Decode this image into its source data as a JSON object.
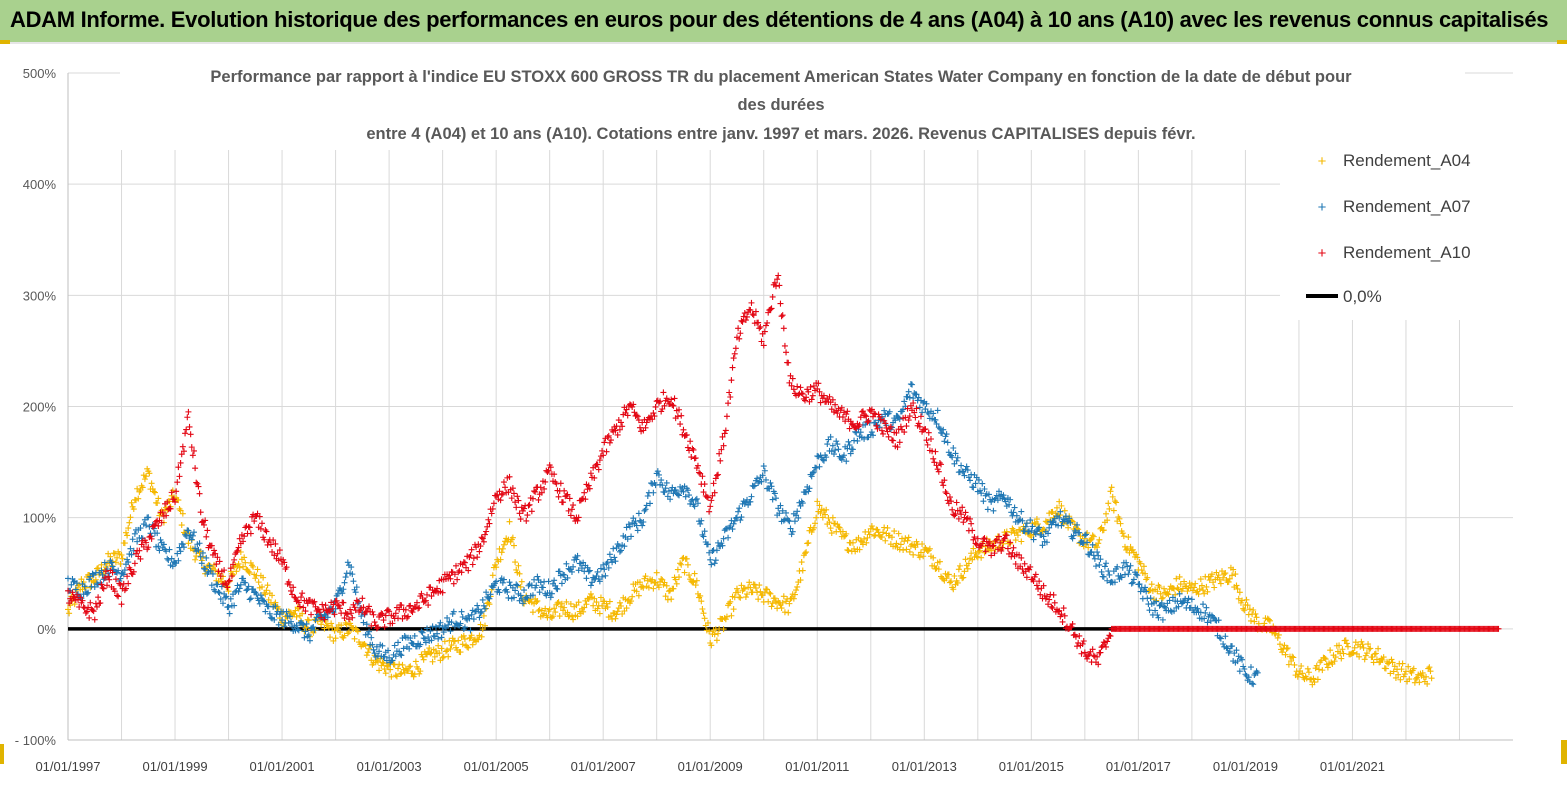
{
  "banner": {
    "title": "ADAM Informe. Evolution historique des performances en euros pour des détentions de 4 ans (A04) à 10 ans (A10) avec les revenus connus capitalisés"
  },
  "colors": {
    "banner_bg": "#a9d18e",
    "series_A04": "#f5b800",
    "series_A07": "#1f77b4",
    "series_A10": "#e30613",
    "zero_line": "#000000",
    "grid": "#d9d9d9"
  },
  "chart_data": {
    "type": "scatter",
    "title_lines": [
      "Performance par rapport à l'indice EU STOXX 600 GROSS TR  du placement American States Water Company en fonction de la date de début pour",
      "des durées",
      "entre 4 (A04) et 10 ans (A10). Cotations entre janv. 1997 et mars. 2026. Revenus CAPITALISES depuis févr."
    ],
    "ylim": [
      -100,
      500
    ],
    "y_ticks": [
      "500%",
      "400%",
      "300%",
      "200%",
      "100%",
      "0%",
      "- 100%"
    ],
    "y_tick_values": [
      500,
      400,
      300,
      200,
      100,
      0,
      -100
    ],
    "xlim": [
      "1997-01-01",
      "2023-12-31"
    ],
    "x_ticks": [
      "01/01/1997",
      "01/01/1999",
      "01/01/2001",
      "01/01/2003",
      "01/01/2005",
      "01/01/2007",
      "01/01/2009",
      "01/01/2011",
      "01/01/2013",
      "01/01/2015",
      "01/01/2017",
      "01/01/2019",
      "01/01/2021"
    ],
    "x_tick_years": [
      1997,
      1999,
      2001,
      2003,
      2005,
      2007,
      2009,
      2011,
      2013,
      2015,
      2017,
      2019,
      2021
    ],
    "x_minor_grid_years": [
      1998,
      2000,
      2002,
      2004,
      2006,
      2008,
      2010,
      2012,
      2014,
      2016,
      2018,
      2020,
      2022,
      2023
    ],
    "grid": true,
    "legend_position": "top-right",
    "marker": "+",
    "series": [
      {
        "name": "Rendement_A04",
        "color": "#f5b800",
        "points": [
          [
            1997.0,
            15
          ],
          [
            1997.25,
            40
          ],
          [
            1997.5,
            45
          ],
          [
            1997.75,
            60
          ],
          [
            1998.0,
            65
          ],
          [
            1998.25,
            120
          ],
          [
            1998.5,
            140
          ],
          [
            1998.75,
            100
          ],
          [
            1999.0,
            120
          ],
          [
            1999.25,
            80
          ],
          [
            1999.5,
            60
          ],
          [
            1999.75,
            50
          ],
          [
            2000.0,
            40
          ],
          [
            2000.25,
            65
          ],
          [
            2000.5,
            50
          ],
          [
            2000.75,
            30
          ],
          [
            2001.0,
            10
          ],
          [
            2001.25,
            15
          ],
          [
            2001.5,
            0
          ],
          [
            2001.75,
            5
          ],
          [
            2002.0,
            -5
          ],
          [
            2002.25,
            0
          ],
          [
            2002.5,
            -10
          ],
          [
            2002.75,
            -30
          ],
          [
            2003.0,
            -35
          ],
          [
            2003.25,
            -40
          ],
          [
            2003.5,
            -35
          ],
          [
            2003.75,
            -25
          ],
          [
            2004.0,
            -20
          ],
          [
            2004.25,
            -15
          ],
          [
            2004.5,
            -10
          ],
          [
            2004.75,
            0
          ],
          [
            2005.0,
            60
          ],
          [
            2005.25,
            90
          ],
          [
            2005.5,
            30
          ],
          [
            2005.75,
            20
          ],
          [
            2006.0,
            10
          ],
          [
            2006.25,
            20
          ],
          [
            2006.5,
            15
          ],
          [
            2006.75,
            25
          ],
          [
            2007.0,
            20
          ],
          [
            2007.25,
            15
          ],
          [
            2007.5,
            30
          ],
          [
            2007.75,
            40
          ],
          [
            2008.0,
            45
          ],
          [
            2008.25,
            30
          ],
          [
            2008.5,
            60
          ],
          [
            2008.75,
            40
          ],
          [
            2009.0,
            -10
          ],
          [
            2009.25,
            5
          ],
          [
            2009.5,
            30
          ],
          [
            2009.75,
            35
          ],
          [
            2010.0,
            30
          ],
          [
            2010.25,
            25
          ],
          [
            2010.5,
            20
          ],
          [
            2010.75,
            60
          ],
          [
            2011.0,
            110
          ],
          [
            2011.25,
            95
          ],
          [
            2011.5,
            80
          ],
          [
            2011.75,
            75
          ],
          [
            2012.0,
            90
          ],
          [
            2012.25,
            85
          ],
          [
            2012.5,
            80
          ],
          [
            2012.75,
            75
          ],
          [
            2013.0,
            70
          ],
          [
            2013.25,
            60
          ],
          [
            2013.5,
            40
          ],
          [
            2013.75,
            55
          ],
          [
            2014.0,
            70
          ],
          [
            2014.25,
            75
          ],
          [
            2014.5,
            80
          ],
          [
            2014.75,
            85
          ],
          [
            2015.0,
            90
          ],
          [
            2015.25,
            95
          ],
          [
            2015.5,
            110
          ],
          [
            2015.75,
            90
          ],
          [
            2016.0,
            80
          ],
          [
            2016.25,
            75
          ],
          [
            2016.5,
            120
          ],
          [
            2016.75,
            80
          ],
          [
            2017.0,
            60
          ],
          [
            2017.25,
            35
          ],
          [
            2017.5,
            30
          ],
          [
            2017.75,
            40
          ],
          [
            2018.0,
            35
          ],
          [
            2018.25,
            40
          ],
          [
            2018.5,
            45
          ],
          [
            2018.75,
            50
          ],
          [
            2019.0,
            20
          ],
          [
            2019.25,
            5
          ],
          [
            2019.5,
            0
          ],
          [
            2019.75,
            -20
          ],
          [
            2020.0,
            -40
          ],
          [
            2020.25,
            -45
          ],
          [
            2020.5,
            -30
          ],
          [
            2020.75,
            -20
          ],
          [
            2021.0,
            -15
          ],
          [
            2021.25,
            -20
          ],
          [
            2021.5,
            -25
          ],
          [
            2021.75,
            -35
          ],
          [
            2022.0,
            -40
          ],
          [
            2022.25,
            -45
          ],
          [
            2022.5,
            -40
          ]
        ]
      },
      {
        "name": "Rendement_A07",
        "color": "#1f77b4",
        "points": [
          [
            1997.0,
            40
          ],
          [
            1997.25,
            35
          ],
          [
            1997.5,
            45
          ],
          [
            1997.75,
            55
          ],
          [
            1998.0,
            50
          ],
          [
            1998.25,
            80
          ],
          [
            1998.5,
            95
          ],
          [
            1998.75,
            70
          ],
          [
            1999.0,
            60
          ],
          [
            1999.25,
            90
          ],
          [
            1999.5,
            65
          ],
          [
            1999.75,
            40
          ],
          [
            2000.0,
            20
          ],
          [
            2000.25,
            40
          ],
          [
            2000.5,
            30
          ],
          [
            2000.75,
            15
          ],
          [
            2001.0,
            10
          ],
          [
            2001.25,
            5
          ],
          [
            2001.5,
            -5
          ],
          [
            2001.75,
            10
          ],
          [
            2002.0,
            20
          ],
          [
            2002.25,
            60
          ],
          [
            2002.5,
            10
          ],
          [
            2002.75,
            -20
          ],
          [
            2003.0,
            -25
          ],
          [
            2003.25,
            -15
          ],
          [
            2003.5,
            -10
          ],
          [
            2003.75,
            -5
          ],
          [
            2004.0,
            0
          ],
          [
            2004.25,
            10
          ],
          [
            2004.5,
            5
          ],
          [
            2004.75,
            20
          ],
          [
            2005.0,
            40
          ],
          [
            2005.25,
            35
          ],
          [
            2005.5,
            30
          ],
          [
            2005.75,
            40
          ],
          [
            2006.0,
            35
          ],
          [
            2006.25,
            50
          ],
          [
            2006.5,
            60
          ],
          [
            2006.75,
            45
          ],
          [
            2007.0,
            50
          ],
          [
            2007.25,
            70
          ],
          [
            2007.5,
            90
          ],
          [
            2007.75,
            100
          ],
          [
            2008.0,
            140
          ],
          [
            2008.25,
            120
          ],
          [
            2008.5,
            130
          ],
          [
            2008.75,
            110
          ],
          [
            2009.0,
            60
          ],
          [
            2009.25,
            80
          ],
          [
            2009.5,
            100
          ],
          [
            2009.75,
            120
          ],
          [
            2010.0,
            140
          ],
          [
            2010.25,
            110
          ],
          [
            2010.5,
            90
          ],
          [
            2010.75,
            120
          ],
          [
            2011.0,
            150
          ],
          [
            2011.25,
            165
          ],
          [
            2011.5,
            155
          ],
          [
            2011.75,
            175
          ],
          [
            2012.0,
            180
          ],
          [
            2012.25,
            190
          ],
          [
            2012.5,
            185
          ],
          [
            2012.75,
            215
          ],
          [
            2013.0,
            200
          ],
          [
            2013.25,
            190
          ],
          [
            2013.5,
            160
          ],
          [
            2013.75,
            140
          ],
          [
            2014.0,
            130
          ],
          [
            2014.25,
            110
          ],
          [
            2014.5,
            120
          ],
          [
            2014.75,
            100
          ],
          [
            2015.0,
            90
          ],
          [
            2015.25,
            80
          ],
          [
            2015.5,
            100
          ],
          [
            2015.75,
            90
          ],
          [
            2016.0,
            80
          ],
          [
            2016.25,
            60
          ],
          [
            2016.5,
            45
          ],
          [
            2016.75,
            55
          ],
          [
            2017.0,
            40
          ],
          [
            2017.25,
            20
          ],
          [
            2017.5,
            15
          ],
          [
            2017.75,
            25
          ],
          [
            2018.0,
            20
          ],
          [
            2018.25,
            15
          ],
          [
            2018.5,
            0
          ],
          [
            2018.75,
            -20
          ],
          [
            2019.0,
            -40
          ],
          [
            2019.25,
            -45
          ]
        ]
      },
      {
        "name": "Rendement_A10",
        "color": "#e30613",
        "points": [
          [
            1997.0,
            30
          ],
          [
            1997.25,
            20
          ],
          [
            1997.5,
            15
          ],
          [
            1997.75,
            50
          ],
          [
            1998.0,
            30
          ],
          [
            1998.25,
            60
          ],
          [
            1998.5,
            80
          ],
          [
            1998.75,
            100
          ],
          [
            1999.0,
            120
          ],
          [
            1999.25,
            190
          ],
          [
            1999.5,
            100
          ],
          [
            1999.75,
            60
          ],
          [
            2000.0,
            40
          ],
          [
            2000.25,
            80
          ],
          [
            2000.5,
            100
          ],
          [
            2000.75,
            80
          ],
          [
            2001.0,
            60
          ],
          [
            2001.25,
            30
          ],
          [
            2001.5,
            20
          ],
          [
            2001.75,
            15
          ],
          [
            2002.0,
            20
          ],
          [
            2002.25,
            15
          ],
          [
            2002.5,
            20
          ],
          [
            2002.75,
            5
          ],
          [
            2003.0,
            10
          ],
          [
            2003.25,
            15
          ],
          [
            2003.5,
            20
          ],
          [
            2003.75,
            30
          ],
          [
            2004.0,
            40
          ],
          [
            2004.25,
            50
          ],
          [
            2004.5,
            60
          ],
          [
            2004.75,
            80
          ],
          [
            2005.0,
            120
          ],
          [
            2005.25,
            130
          ],
          [
            2005.5,
            100
          ],
          [
            2005.75,
            120
          ],
          [
            2006.0,
            140
          ],
          [
            2006.25,
            120
          ],
          [
            2006.5,
            100
          ],
          [
            2006.75,
            130
          ],
          [
            2007.0,
            160
          ],
          [
            2007.25,
            180
          ],
          [
            2007.5,
            200
          ],
          [
            2007.75,
            180
          ],
          [
            2008.0,
            200
          ],
          [
            2008.25,
            210
          ],
          [
            2008.5,
            180
          ],
          [
            2008.75,
            150
          ],
          [
            2009.0,
            110
          ],
          [
            2009.25,
            170
          ],
          [
            2009.5,
            260
          ],
          [
            2009.75,
            290
          ],
          [
            2010.0,
            260
          ],
          [
            2010.25,
            320
          ],
          [
            2010.5,
            220
          ],
          [
            2010.75,
            210
          ],
          [
            2011.0,
            215
          ],
          [
            2011.25,
            200
          ],
          [
            2011.5,
            190
          ],
          [
            2011.75,
            185
          ],
          [
            2012.0,
            195
          ],
          [
            2012.25,
            180
          ],
          [
            2012.5,
            170
          ],
          [
            2012.75,
            200
          ],
          [
            2013.0,
            180
          ],
          [
            2013.25,
            150
          ],
          [
            2013.5,
            110
          ],
          [
            2013.75,
            100
          ],
          [
            2014.0,
            80
          ],
          [
            2014.25,
            70
          ],
          [
            2014.5,
            80
          ],
          [
            2014.75,
            60
          ],
          [
            2015.0,
            50
          ],
          [
            2015.25,
            30
          ],
          [
            2015.5,
            20
          ],
          [
            2015.75,
            0
          ],
          [
            2016.0,
            -20
          ],
          [
            2016.25,
            -30
          ],
          [
            2016.5,
            0
          ],
          [
            2017.0,
            0
          ],
          [
            2018.0,
            0
          ],
          [
            2019.0,
            0
          ],
          [
            2020.0,
            0
          ],
          [
            2021.0,
            0
          ],
          [
            2022.0,
            0
          ],
          [
            2023.0,
            0
          ],
          [
            2023.75,
            0
          ]
        ]
      }
    ],
    "reference_line": {
      "name": "0,0%",
      "value": 0,
      "color": "#000000"
    }
  }
}
